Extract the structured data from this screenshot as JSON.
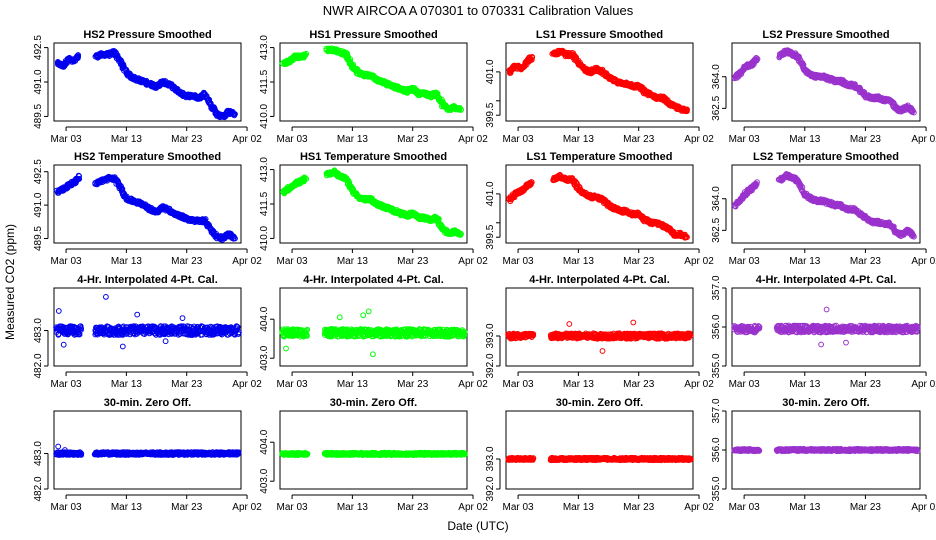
{
  "title": "NWR    AIRCOA A    070301 to 070331    Calibration Values",
  "xlabel": "Date (UTC)",
  "ylabel": "Measured CO2 (ppm)",
  "x_ticks": [
    "Mar 03",
    "Mar 13",
    "Mar 23",
    "Apr 02"
  ],
  "colors": {
    "HS2": "#0000ee",
    "HS1": "#00ff00",
    "LS1": "#ff0000",
    "LS2": "#9a32cd"
  },
  "chart_data": [
    {
      "type": "scatter",
      "title": "HS2 Pressure Smoothed",
      "color_key": "HS2",
      "ylim": [
        489.3,
        492.7
      ],
      "yticks": [
        489.5,
        491.0,
        492.5
      ],
      "x_day_range": [
        1,
        32
      ],
      "gap": [
        5.5,
        7.8
      ],
      "series": {
        "name": "HS2",
        "x_days": [
          1.6,
          2.5,
          3.4,
          4.3,
          5.2,
          8.0,
          9.0,
          10.0,
          11.0,
          12.0,
          13.0,
          14.0,
          15.0,
          16.0,
          17.0,
          18.0,
          19.0,
          20.0,
          21.0,
          22.0,
          23.0,
          24.0,
          25.0,
          26.0,
          27.0,
          28.0,
          29.0,
          30.0,
          31.0
        ],
        "values": [
          491.8,
          491.7,
          492.0,
          491.9,
          492.2,
          492.1,
          492.2,
          492.2,
          492.3,
          491.9,
          491.4,
          491.2,
          491.1,
          491.0,
          490.9,
          490.8,
          491.0,
          490.9,
          490.7,
          490.5,
          490.4,
          490.4,
          490.3,
          490.5,
          490.0,
          489.6,
          489.5,
          489.7,
          489.6
        ]
      }
    },
    {
      "type": "scatter",
      "title": "HS1 Pressure Smoothed",
      "color_key": "HS1",
      "ylim": [
        409.8,
        413.2
      ],
      "yticks": [
        410.0,
        411.5,
        413.0
      ],
      "x_day_range": [
        1,
        32
      ],
      "gap": [
        5.5,
        8.4
      ],
      "series": {
        "name": "HS1",
        "x_days": [
          1.6,
          2.6,
          3.6,
          4.6,
          5.3,
          8.8,
          10.0,
          11.0,
          12.0,
          13.0,
          14.0,
          15.0,
          16.0,
          17.0,
          18.0,
          19.0,
          20.0,
          21.0,
          22.0,
          23.0,
          24.0,
          25.0,
          26.0,
          27.0,
          28.0,
          29.0,
          30.0,
          31.0
        ],
        "values": [
          412.3,
          412.4,
          412.6,
          412.6,
          412.7,
          412.9,
          412.9,
          412.8,
          412.7,
          412.2,
          411.9,
          411.8,
          411.8,
          411.6,
          411.5,
          411.4,
          411.3,
          411.2,
          411.1,
          411.2,
          411.0,
          411.0,
          410.9,
          411.0,
          410.5,
          410.3,
          410.4,
          410.3
        ]
      }
    },
    {
      "type": "scatter",
      "title": "LS1 Pressure Smoothed",
      "color_key": "LS1",
      "ylim": [
        399.3,
        402.0
      ],
      "yticks": [
        399.5,
        400.0,
        401.0
      ],
      "ytick_labels": [
        "399.5",
        "",
        "401.0"
      ],
      "x_day_range": [
        1,
        32
      ],
      "gap": [
        5.5,
        8.4
      ],
      "series": {
        "name": "LS1",
        "x_days": [
          1.6,
          2.6,
          3.6,
          4.6,
          5.3,
          8.8,
          10.0,
          11.0,
          12.0,
          13.0,
          14.0,
          15.0,
          16.0,
          17.0,
          18.0,
          19.0,
          20.0,
          21.0,
          22.0,
          23.0,
          24.0,
          25.0,
          26.0,
          27.0,
          28.0,
          29.0,
          30.0,
          31.0
        ],
        "values": [
          401.0,
          401.2,
          401.1,
          401.4,
          401.5,
          401.6,
          401.7,
          401.6,
          401.6,
          401.3,
          401.1,
          401.0,
          401.1,
          401.0,
          400.8,
          400.7,
          400.6,
          400.6,
          400.5,
          400.5,
          400.3,
          400.2,
          400.1,
          400.1,
          399.9,
          399.8,
          399.7,
          399.7
        ]
      }
    },
    {
      "type": "scatter",
      "title": "LS2 Pressure Smoothed",
      "color_key": "LS2",
      "ylim": [
        361.9,
        365.6
      ],
      "yticks": [
        362.5,
        364.0
      ],
      "x_day_range": [
        1,
        32
      ],
      "gap": [
        5.5,
        8.4
      ],
      "series": {
        "name": "LS2",
        "x_days": [
          1.6,
          2.5,
          3.4,
          4.3,
          5.2,
          8.8,
          10.0,
          11.0,
          12.0,
          13.0,
          14.0,
          15.0,
          16.0,
          17.0,
          18.0,
          19.0,
          20.0,
          21.0,
          22.0,
          23.0,
          24.0,
          25.0,
          26.0,
          27.0,
          28.0,
          29.0,
          30.0,
          31.0
        ],
        "values": [
          364.0,
          364.2,
          364.5,
          364.6,
          364.9,
          365.0,
          365.2,
          365.1,
          364.9,
          364.3,
          364.1,
          364.0,
          364.0,
          363.9,
          363.8,
          363.8,
          363.6,
          363.6,
          363.4,
          363.1,
          363.0,
          363.0,
          362.9,
          362.9,
          362.5,
          362.4,
          362.6,
          362.3
        ]
      }
    },
    {
      "type": "scatter",
      "title": "HS2 Temperature Smoothed",
      "color_key": "HS2",
      "ylim": [
        489.3,
        492.8
      ],
      "yticks": [
        489.5,
        491.0,
        492.5
      ],
      "x_day_range": [
        1,
        32
      ],
      "gap": [
        5.5,
        7.8
      ],
      "series": {
        "name": "HS2",
        "x_days": [
          1.6,
          2.5,
          3.4,
          4.3,
          5.2,
          8.0,
          9.0,
          10.0,
          11.0,
          12.0,
          13.0,
          14.0,
          15.0,
          16.0,
          17.0,
          18.0,
          19.0,
          20.0,
          21.0,
          22.0,
          23.0,
          24.0,
          25.0,
          26.0,
          27.0,
          28.0,
          29.0,
          30.0,
          31.0
        ],
        "values": [
          491.6,
          491.7,
          491.9,
          492.0,
          492.3,
          492.0,
          492.1,
          492.2,
          492.2,
          491.8,
          491.3,
          491.2,
          491.1,
          491.0,
          490.8,
          490.7,
          490.9,
          490.8,
          490.6,
          490.5,
          490.4,
          490.3,
          490.3,
          490.3,
          489.9,
          489.6,
          489.5,
          489.7,
          489.5
        ]
      }
    },
    {
      "type": "scatter",
      "title": "HS1 Temperature Smoothed",
      "color_key": "HS1",
      "ylim": [
        409.8,
        413.2
      ],
      "yticks": [
        410.0,
        411.5,
        413.0
      ],
      "x_day_range": [
        1,
        32
      ],
      "gap": [
        5.5,
        8.4
      ],
      "series": {
        "name": "HS1",
        "x_days": [
          1.6,
          2.6,
          3.6,
          4.6,
          5.3,
          8.8,
          10.0,
          11.0,
          12.0,
          13.0,
          14.0,
          15.0,
          16.0,
          17.0,
          18.0,
          19.0,
          20.0,
          21.0,
          22.0,
          23.0,
          24.0,
          25.0,
          26.0,
          27.0,
          28.0,
          29.0,
          30.0,
          31.0
        ],
        "values": [
          412.0,
          412.2,
          412.4,
          412.5,
          412.6,
          412.8,
          412.9,
          412.7,
          412.6,
          412.1,
          411.8,
          411.7,
          411.7,
          411.5,
          411.4,
          411.3,
          411.2,
          411.1,
          411.0,
          411.1,
          410.9,
          410.9,
          410.8,
          410.9,
          410.4,
          410.2,
          410.3,
          410.2
        ]
      }
    },
    {
      "type": "scatter",
      "title": "LS1 Temperature Smoothed",
      "color_key": "LS1",
      "ylim": [
        399.3,
        402.0
      ],
      "yticks": [
        399.5,
        400.0,
        401.0
      ],
      "ytick_labels": [
        "399.5",
        "",
        "401.0"
      ],
      "x_day_range": [
        1,
        32
      ],
      "gap": [
        5.5,
        8.4
      ],
      "series": {
        "name": "LS1",
        "x_days": [
          1.6,
          2.6,
          3.6,
          4.6,
          5.3,
          8.8,
          10.0,
          11.0,
          12.0,
          13.0,
          14.0,
          15.0,
          16.0,
          17.0,
          18.0,
          19.0,
          20.0,
          21.0,
          22.0,
          23.0,
          24.0,
          25.0,
          26.0,
          27.0,
          28.0,
          29.0,
          30.0,
          31.0
        ],
        "values": [
          400.8,
          401.0,
          401.1,
          401.3,
          401.4,
          401.5,
          401.6,
          401.5,
          401.5,
          401.2,
          401.0,
          400.9,
          400.9,
          400.8,
          400.6,
          400.5,
          400.4,
          400.4,
          400.3,
          400.3,
          400.1,
          400.0,
          400.0,
          399.9,
          399.8,
          399.6,
          399.6,
          399.5
        ]
      }
    },
    {
      "type": "scatter",
      "title": "LS2 Temperature Smoothed",
      "color_key": "LS2",
      "ylim": [
        361.9,
        365.6
      ],
      "yticks": [
        362.5,
        364.0
      ],
      "x_day_range": [
        1,
        32
      ],
      "gap": [
        5.5,
        8.4
      ],
      "series": {
        "name": "LS2",
        "x_days": [
          1.6,
          2.5,
          3.4,
          4.3,
          5.2,
          8.8,
          10.0,
          11.0,
          12.0,
          13.0,
          14.0,
          15.0,
          16.0,
          17.0,
          18.0,
          19.0,
          20.0,
          21.0,
          22.0,
          23.0,
          24.0,
          25.0,
          26.0,
          27.0,
          28.0,
          29.0,
          30.0,
          31.0
        ],
        "values": [
          363.7,
          364.0,
          364.3,
          364.5,
          364.8,
          364.9,
          365.1,
          365.0,
          364.8,
          364.2,
          364.0,
          363.9,
          363.9,
          363.8,
          363.7,
          363.7,
          363.5,
          363.5,
          363.3,
          363.1,
          362.9,
          362.9,
          362.8,
          362.8,
          362.4,
          362.3,
          362.5,
          362.2
        ]
      }
    },
    {
      "type": "scatter",
      "title": "4-Hr. Interpolated 4-Pt. Cal.",
      "color_key": "HS2",
      "ylim": [
        482.0,
        484.2
      ],
      "yticks": [
        482.0,
        483.0
      ],
      "x_day_range": [
        1,
        32
      ],
      "gap": [
        5.5,
        7.8
      ],
      "series": {
        "name": "HS2",
        "center": 483.0,
        "spread": 0.25,
        "x_days": [
          1.8,
          9.6,
          12.4,
          14.8,
          22.3,
          2.6,
          19.5
        ],
        "values": [
          483.55,
          483.95,
          482.55,
          483.45,
          483.35,
          482.6,
          482.7
        ]
      }
    },
    {
      "type": "scatter",
      "title": "4-Hr. Interpolated 4-Pt. Cal.",
      "color_key": "HS1",
      "ylim": [
        402.8,
        404.8
      ],
      "yticks": [
        403.0,
        404.0
      ],
      "x_day_range": [
        1,
        32
      ],
      "gap": [
        5.5,
        8.4
      ],
      "series": {
        "name": "HS1",
        "center": 403.65,
        "spread": 0.2,
        "x_days": [
          15.7,
          14.8,
          16.4,
          2.0,
          10.9
        ],
        "values": [
          404.2,
          404.1,
          403.1,
          403.25,
          404.05
        ]
      }
    },
    {
      "type": "scatter",
      "title": "4-Hr. Interpolated 4-Pt. Cal.",
      "color_key": "LS1",
      "ylim": [
        392.0,
        394.6
      ],
      "yticks": [
        392.0,
        393.0
      ],
      "x_day_range": [
        1,
        32
      ],
      "gap": [
        5.5,
        8.4
      ],
      "series": {
        "name": "LS1",
        "center": 393.0,
        "spread": 0.18,
        "x_days": [
          17.0,
          22.1,
          11.5
        ],
        "values": [
          392.5,
          393.45,
          393.4
        ]
      }
    },
    {
      "type": "scatter",
      "title": "4-Hr. Interpolated 4-Pt. Cal.",
      "color_key": "LS2",
      "ylim": [
        355.0,
        357.0
      ],
      "yticks": [
        355.0,
        356.0,
        357.0
      ],
      "x_day_range": [
        1,
        32
      ],
      "gap": [
        5.5,
        8.4
      ],
      "series": {
        "name": "LS2",
        "center": 355.95,
        "spread": 0.18,
        "x_days": [
          16.6,
          15.7,
          19.8
        ],
        "values": [
          356.45,
          355.55,
          355.6
        ]
      }
    },
    {
      "type": "scatter",
      "title": "30-min. Zero Off.",
      "color_key": "HS2",
      "ylim": [
        482.0,
        484.2
      ],
      "yticks": [
        482.0,
        483.0
      ],
      "x_day_range": [
        1,
        32
      ],
      "gap": [
        5.5,
        7.8
      ],
      "series": {
        "name": "HS2",
        "center": 483.0,
        "spread": 0.08,
        "x_days": [
          1.7,
          2.8
        ],
        "values": [
          483.2,
          483.1
        ]
      }
    },
    {
      "type": "scatter",
      "title": "30-min. Zero Off.",
      "color_key": "HS1",
      "ylim": [
        402.8,
        404.8
      ],
      "yticks": [
        403.0,
        404.0
      ],
      "x_day_range": [
        1,
        32
      ],
      "gap": [
        5.5,
        8.4
      ],
      "series": {
        "name": "HS1",
        "center": 403.7,
        "spread": 0.06,
        "x_days": [],
        "values": []
      }
    },
    {
      "type": "scatter",
      "title": "30-min. Zero Off.",
      "color_key": "LS1",
      "ylim": [
        392.0,
        394.6
      ],
      "yticks": [
        392.0,
        393.0
      ],
      "x_day_range": [
        1,
        32
      ],
      "gap": [
        5.5,
        8.4
      ],
      "series": {
        "name": "LS1",
        "center": 393.0,
        "spread": 0.08,
        "x_days": [],
        "values": []
      }
    },
    {
      "type": "scatter",
      "title": "30-min. Zero Off.",
      "color_key": "LS2",
      "ylim": [
        355.0,
        357.0
      ],
      "yticks": [
        355.0,
        356.0,
        357.0
      ],
      "x_day_range": [
        1,
        32
      ],
      "gap": [
        5.5,
        8.4
      ],
      "series": {
        "name": "LS2",
        "center": 356.0,
        "spread": 0.06,
        "x_days": [],
        "values": []
      }
    }
  ]
}
